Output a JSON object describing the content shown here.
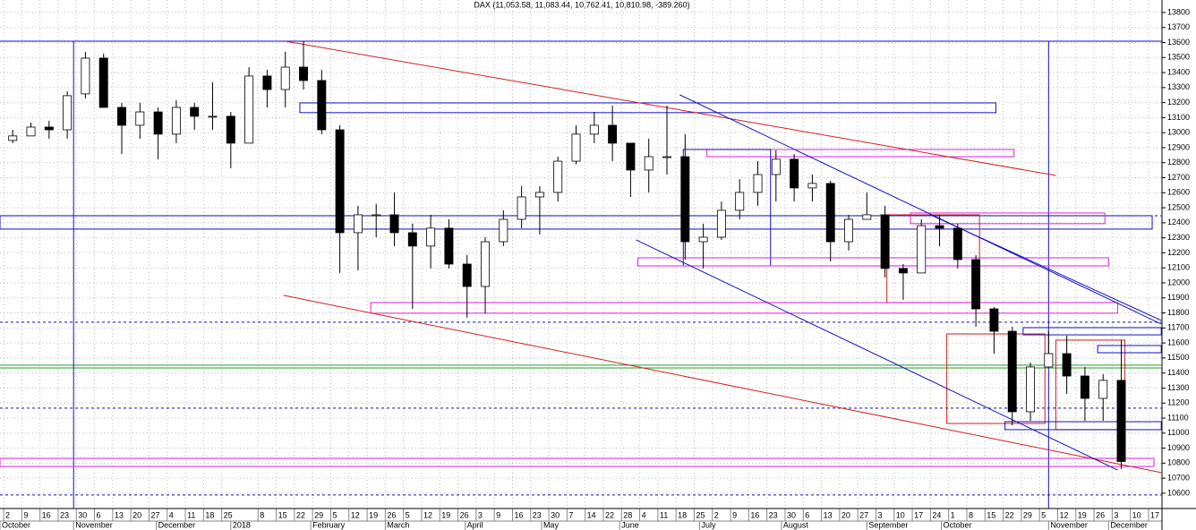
{
  "chart_data": {
    "type": "candlestick",
    "title": "DAX (11,053.58, 11,083.44, 10,762.41, 10,810.98, -389.260)",
    "x": [
      0.5,
      1.5,
      2.5,
      3.5,
      4.5,
      5.5,
      6.5,
      7.5,
      8.5,
      9.5,
      10.5,
      11.5,
      12.5,
      13.5,
      14.5,
      15.5,
      16.5,
      17.5,
      18.5,
      19.5,
      20.5,
      21.5,
      22.5,
      23.5,
      24.5,
      25.5,
      26.5,
      27.5,
      28.5,
      29.5,
      30.5,
      31.5,
      32.5,
      33.5,
      34.5,
      35.5,
      36.5,
      37.5,
      38.5,
      39.5,
      40.5,
      41.5,
      42.5,
      43.5,
      44.5,
      45.5,
      46.5,
      47.5,
      48.5,
      49.5,
      50.5,
      51.5,
      52.5,
      53.5,
      54.5,
      55.5,
      56.5,
      57.5,
      58.5,
      59.5,
      60.5,
      61.5
    ],
    "open": [
      12948,
      12978,
      13037,
      13019,
      13258,
      13496,
      13168,
      13049,
      13138,
      12990,
      13168,
      13109,
      13109,
      12930,
      13377,
      13287,
      13436,
      13347,
      13019,
      12334,
      12453,
      12453,
      12334,
      12245,
      12364,
      12125,
      11976,
      12274,
      12423,
      12572,
      12602,
      12810,
      12990,
      13049,
      12930,
      12751,
      12840,
      12840,
      12274,
      12304,
      12483,
      12602,
      12721,
      12823,
      12632,
      12662,
      12274,
      12423,
      12453,
      12096,
      12066,
      12381,
      12364,
      12155,
      11827,
      11678,
      11142,
      11440,
      11529,
      11380,
      11231,
      11351
    ],
    "high": [
      13019,
      13067,
      13079,
      13276,
      13538,
      13526,
      13198,
      13198,
      13168,
      13216,
      13198,
      13335,
      13138,
      13436,
      13419,
      13538,
      13609,
      13419,
      13049,
      12513,
      12525,
      12602,
      12394,
      12453,
      12423,
      12185,
      12304,
      12483,
      12644,
      12644,
      12840,
      13049,
      13138,
      13180,
      12930,
      12960,
      13180,
      12990,
      12394,
      12542,
      12691,
      12810,
      12882,
      12858,
      12721,
      12680,
      12453,
      12602,
      12513,
      12125,
      12423,
      12453,
      12394,
      12185,
      11839,
      11708,
      11470,
      11678,
      11648,
      11440,
      11392,
      11619
    ],
    "low": [
      12930,
      12978,
      12960,
      12960,
      13228,
      13168,
      12858,
      12960,
      12823,
      12930,
      13019,
      13019,
      12763,
      12930,
      13168,
      13168,
      13287,
      12990,
      12066,
      12084,
      12304,
      12245,
      11827,
      12096,
      12096,
      11768,
      11798,
      12245,
      12364,
      12322,
      12542,
      12790,
      12930,
      12810,
      12572,
      12602,
      12721,
      12155,
      12096,
      12286,
      12423,
      12513,
      12542,
      12542,
      12542,
      12143,
      12215,
      12423,
      12036,
      11887,
      12066,
      12245,
      12096,
      11708,
      11529,
      11052,
      11082,
      11440,
      11261,
      11082,
      11082,
      10762
    ],
    "close": [
      12978,
      13037,
      13019,
      13246,
      13496,
      13168,
      13049,
      13138,
      12990,
      13168,
      13109,
      13109,
      12930,
      13377,
      13287,
      13436,
      13347,
      13019,
      12334,
      12453,
      12453,
      12334,
      12245,
      12364,
      12125,
      11976,
      12274,
      12423,
      12572,
      12602,
      12810,
      12990,
      13049,
      12930,
      12751,
      12840,
      12840,
      12274,
      12304,
      12483,
      12602,
      12721,
      12823,
      12632,
      12662,
      12274,
      12423,
      12453,
      12096,
      12066,
      12381,
      12364,
      12155,
      11827,
      11678,
      11142,
      11440,
      11529,
      11380,
      11231,
      11351,
      10811
    ],
    "up_color": "#ffffff",
    "down_color": "#000000",
    "xlim": [
      -0.2,
      63.74
    ],
    "ylim": [
      10498,
      13883
    ],
    "yticks": [
      10600,
      10700,
      10800,
      10900,
      11000,
      11100,
      11200,
      11300,
      11400,
      11500,
      11600,
      11700,
      11800,
      11900,
      12000,
      12100,
      12200,
      12300,
      12400,
      12500,
      12600,
      12700,
      12800,
      12900,
      13000,
      13100,
      13200,
      13300,
      13400,
      13500,
      13600,
      13700,
      13800
    ],
    "xticks": [
      {
        "value": 0,
        "label": "2"
      },
      {
        "value": 1,
        "label": "9"
      },
      {
        "value": 2,
        "label": "16"
      },
      {
        "value": 3,
        "label": "23"
      },
      {
        "value": 4,
        "label": "30"
      },
      {
        "value": 5,
        "label": "6"
      },
      {
        "value": 6,
        "label": "13"
      },
      {
        "value": 7,
        "label": "20"
      },
      {
        "value": 8,
        "label": "27"
      },
      {
        "value": 9,
        "label": "4"
      },
      {
        "value": 10,
        "label": "11"
      },
      {
        "value": 11,
        "label": "18"
      },
      {
        "value": 12,
        "label": "25"
      },
      {
        "value": 14,
        "label": "8"
      },
      {
        "value": 15,
        "label": "15"
      },
      {
        "value": 16,
        "label": "22"
      },
      {
        "value": 17,
        "label": "29"
      },
      {
        "value": 18,
        "label": "5"
      },
      {
        "value": 19,
        "label": "12"
      },
      {
        "value": 20,
        "label": "19"
      },
      {
        "value": 21,
        "label": "26"
      },
      {
        "value": 22,
        "label": "5"
      },
      {
        "value": 23,
        "label": "12"
      },
      {
        "value": 24,
        "label": "19"
      },
      {
        "value": 25,
        "label": "26"
      },
      {
        "value": 26,
        "label": "3"
      },
      {
        "value": 27,
        "label": "9"
      },
      {
        "value": 28,
        "label": "16"
      },
      {
        "value": 29,
        "label": "23"
      },
      {
        "value": 30,
        "label": "30"
      },
      {
        "value": 31,
        "label": "7"
      },
      {
        "value": 32,
        "label": "14"
      },
      {
        "value": 33,
        "label": "22"
      },
      {
        "value": 34,
        "label": "28"
      },
      {
        "value": 35,
        "label": "4"
      },
      {
        "value": 36,
        "label": "11"
      },
      {
        "value": 37,
        "label": "18"
      },
      {
        "value": 38,
        "label": "25"
      },
      {
        "value": 39,
        "label": "2"
      },
      {
        "value": 40,
        "label": "9"
      },
      {
        "value": 41,
        "label": "16"
      },
      {
        "value": 42,
        "label": "23"
      },
      {
        "value": 43,
        "label": "30"
      },
      {
        "value": 44,
        "label": "6"
      },
      {
        "value": 45,
        "label": "13"
      },
      {
        "value": 46,
        "label": "20"
      },
      {
        "value": 47,
        "label": "27"
      },
      {
        "value": 48,
        "label": "3"
      },
      {
        "value": 49,
        "label": "10"
      },
      {
        "value": 50,
        "label": "17"
      },
      {
        "value": 51,
        "label": "24"
      },
      {
        "value": 52,
        "label": "1"
      },
      {
        "value": 53,
        "label": "8"
      },
      {
        "value": 54,
        "label": "15"
      },
      {
        "value": 55,
        "label": "22"
      },
      {
        "value": 56,
        "label": "29"
      },
      {
        "value": 57,
        "label": "5"
      },
      {
        "value": 58,
        "label": "12"
      },
      {
        "value": 59,
        "label": "19"
      },
      {
        "value": 60,
        "label": "26"
      },
      {
        "value": 61,
        "label": "3"
      },
      {
        "value": 62,
        "label": "10"
      },
      {
        "value": 63,
        "label": "17"
      }
    ],
    "xmonths": [
      {
        "value": -0.2,
        "label": "October"
      },
      {
        "value": 3.85,
        "label": "November"
      },
      {
        "value": 8.4,
        "label": "December"
      },
      {
        "value": 12.5,
        "label": "2018"
      },
      {
        "value": 16.9,
        "label": "February"
      },
      {
        "value": 21,
        "label": "March"
      },
      {
        "value": 25.4,
        "label": "April"
      },
      {
        "value": 29.6,
        "label": "May"
      },
      {
        "value": 33.9,
        "label": "June"
      },
      {
        "value": 38.3,
        "label": "July"
      },
      {
        "value": 42.8,
        "label": "August"
      },
      {
        "value": 47.5,
        "label": "September"
      },
      {
        "value": 51.6,
        "label": "October"
      },
      {
        "value": 57.5,
        "label": "November"
      },
      {
        "value": 60.8,
        "label": "December"
      }
    ],
    "grid": true,
    "hlines": [
      {
        "value": 13609,
        "color": "#1010c0",
        "dash": false
      },
      {
        "value": 12447,
        "color": "#1010c0",
        "dash": true
      },
      {
        "value": 11738,
        "color": "#1010c0",
        "dash": true
      },
      {
        "value": 11452,
        "color": "#20a020",
        "dash": false
      },
      {
        "value": 11434,
        "color": "#20a020",
        "dash": false
      },
      {
        "value": 11166,
        "color": "#1010c0",
        "dash": true
      },
      {
        "value": 10588,
        "color": "#1010c0",
        "dash": true
      }
    ],
    "vlines": [
      {
        "value": 3.85,
        "color": "#1010c0"
      },
      {
        "value": 57.5,
        "color": "#1010c0"
      }
    ],
    "rects": [
      {
        "x": [
          16.3,
          54.6
        ],
        "y": [
          13198,
          13133
        ],
        "color": "#1010c0"
      },
      {
        "x": [
          38.7,
          55.6
        ],
        "y": [
          12888,
          12840
        ],
        "color": "#e020e0"
      },
      {
        "x": [
          37.4,
          42.2
        ],
        "y": [
          12888,
          12113
        ],
        "color": "#1010c0"
      },
      {
        "x": [
          -0.2,
          63.2
        ],
        "y": [
          12447,
          12358
        ],
        "color": "#1010c0"
      },
      {
        "x": [
          49.9,
          60.6
        ],
        "y": [
          12465,
          12394
        ],
        "color": "#e020e0"
      },
      {
        "x": [
          48.6,
          53.7
        ],
        "y": [
          12453,
          11869
        ],
        "color": "#d02020"
      },
      {
        "x": [
          34.9,
          60.8
        ],
        "y": [
          12167,
          12113
        ],
        "color": "#e020e0"
      },
      {
        "x": [
          20.2,
          61.3
        ],
        "y": [
          11869,
          11798
        ],
        "color": "#e020e0"
      },
      {
        "x": [
          56.1,
          63.7
        ],
        "y": [
          11702,
          11654
        ],
        "color": "#1010c0"
      },
      {
        "x": [
          51.9,
          57.3
        ],
        "y": [
          11660,
          11064
        ],
        "color": "#d02020"
      },
      {
        "x": [
          57.9,
          61.7
        ],
        "y": [
          11619,
          11023
        ],
        "color": "#d02020"
      },
      {
        "x": [
          60.2,
          63.7
        ],
        "y": [
          11583,
          11535
        ],
        "color": "#1010c0"
      },
      {
        "x": [
          55.1,
          63.7
        ],
        "y": [
          11076,
          11023
        ],
        "color": "#1010c0"
      },
      {
        "x": [
          -0.2,
          63.3
        ],
        "y": [
          10832,
          10778
        ],
        "color": "#e020e0"
      }
    ],
    "trendlines": [
      {
        "x": [
          15.5,
          57.9
        ],
        "y": [
          13609,
          12715
        ],
        "color": "#d02020"
      },
      {
        "x": [
          15.4,
          63.7
        ],
        "y": [
          11917,
          10737
        ],
        "color": "#d02020"
      },
      {
        "x": [
          37.2,
          63.7
        ],
        "y": [
          13252,
          11726
        ],
        "color": "#1010c0"
      },
      {
        "x": [
          51.0,
          63.7
        ],
        "y": [
          12453,
          11750
        ],
        "color": "#1010c0"
      },
      {
        "x": [
          34.8,
          61.3
        ],
        "y": [
          12286,
          10754
        ],
        "color": "#1010c0"
      }
    ]
  }
}
